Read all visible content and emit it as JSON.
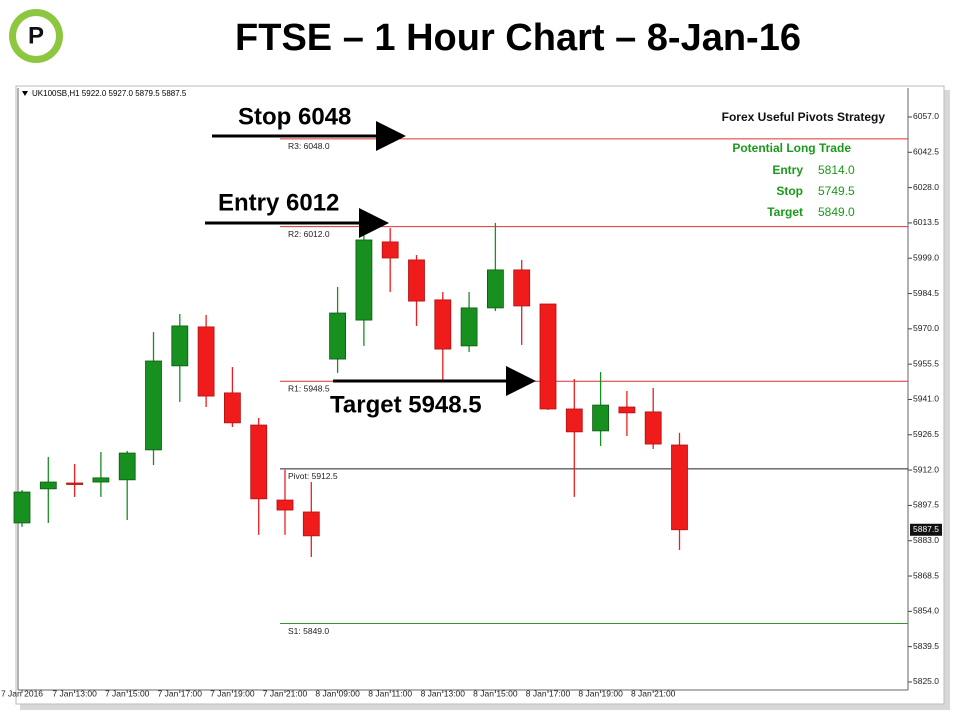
{
  "logo": "P",
  "chart_data": {
    "type": "candlestick",
    "title": "FTSE – 1 Hour Chart – 8-Jan-16",
    "symbol_header": "UK100SB,H1  5922.0 5927.0 5879.5 5887.5",
    "categories": [
      "7 Jan 2016",
      null,
      "7 Jan 13:00",
      null,
      "7 Jan 15:00",
      null,
      "7 Jan 17:00",
      null,
      "7 Jan 19:00",
      null,
      "7 Jan 21:00",
      null,
      "8 Jan 09:00",
      null,
      "8 Jan 11:00",
      null,
      "8 Jan 13:00",
      null,
      "8 Jan 15:00",
      null,
      "8 Jan 17:00",
      null,
      "8 Jan 19:00",
      null,
      "8 Jan 21:00",
      null
    ],
    "open": [
      5890.3,
      5904.3,
      5906.7,
      5907.1,
      5908.0,
      5920.3,
      5954.8,
      5970.8,
      5943.7,
      5930.5,
      5899.7,
      5894.8,
      5957.6,
      5973.6,
      6005.7,
      5998.3,
      5981.9,
      5963.0,
      5978.6,
      5994.2,
      5980.2,
      5937.1,
      5928.1,
      5937.9,
      5935.9,
      5922.3
    ],
    "high": [
      5903.8,
      5917.4,
      5914.5,
      5919.4,
      5919.9,
      5968.7,
      5976.1,
      5975.7,
      5954.3,
      5933.4,
      5912.1,
      5907.1,
      5987.2,
      6009.8,
      6011.4,
      6000.3,
      5985.1,
      5985.1,
      6013.5,
      5998.3,
      5980.2,
      5949.4,
      5952.3,
      5944.5,
      5945.7,
      5927.3
    ],
    "low": [
      5888.7,
      5890.3,
      5901.0,
      5901.0,
      5891.5,
      5914.1,
      5940.0,
      5937.9,
      5929.7,
      5885.4,
      5885.4,
      5876.3,
      5951.9,
      5963.0,
      5985.1,
      5971.2,
      5948.2,
      5960.5,
      5977.3,
      5963.4,
      5936.7,
      5901.0,
      5921.9,
      5926.0,
      5920.7,
      5879.2
    ],
    "close": [
      5903.0,
      5907.1,
      5906.3,
      5908.8,
      5919.0,
      5956.8,
      5971.2,
      5942.4,
      5931.4,
      5900.2,
      5895.6,
      5885.0,
      5976.5,
      6006.5,
      5999.1,
      5981.4,
      5961.7,
      5978.6,
      5994.2,
      5979.4,
      5937.1,
      5927.7,
      5938.7,
      5935.5,
      5922.7,
      5887.5
    ],
    "up_color": "#17901f",
    "down_color": "#f01c1c",
    "current_price": 5887.5,
    "ylim": [
      5821.7,
      6068.9
    ],
    "yticks": [
      {
        "value": 6057,
        "label": "6057.0"
      },
      6042.5,
      {
        "value": 6028,
        "label": "6028.0"
      },
      6013.5,
      {
        "value": 5999,
        "label": "5999.0"
      },
      5984.5,
      {
        "value": 5970,
        "label": "5970.0"
      },
      5955.5,
      {
        "value": 5941,
        "label": "5941.0"
      },
      5926.5,
      {
        "value": 5912,
        "label": "5912.0"
      },
      5897.5,
      {
        "value": 5883,
        "label": "5883.0"
      },
      5868.5,
      {
        "value": 5854,
        "label": "5854.0"
      },
      5839.5,
      {
        "value": 5825,
        "label": "5825.0"
      }
    ],
    "levels": [
      {
        "label": "R3: 6048.0",
        "value": 6048,
        "color": "#e03030"
      },
      {
        "label": "R2: 6012.0",
        "value": 6012,
        "color": "#e03030"
      },
      {
        "label": "R1: 5948.5",
        "value": 5948.5,
        "color": "#e03030"
      },
      {
        "label": "Pivot: 5912.5",
        "value": 5912.5,
        "color": "#222222"
      },
      {
        "label": "S1: 5849.0",
        "value": 5849,
        "color": "#2e9a2e"
      }
    ],
    "annotations": [
      "Stop 6048",
      "Entry 6012",
      "Target 5948.5"
    ],
    "info_box": {
      "title": "Forex Useful Pivots Strategy",
      "subtitle": "Potential Long Trade",
      "rows": [
        [
          "Entry",
          "5814.0"
        ],
        [
          "Stop",
          "5749.5"
        ],
        [
          "Target",
          "5849.0"
        ]
      ]
    }
  }
}
